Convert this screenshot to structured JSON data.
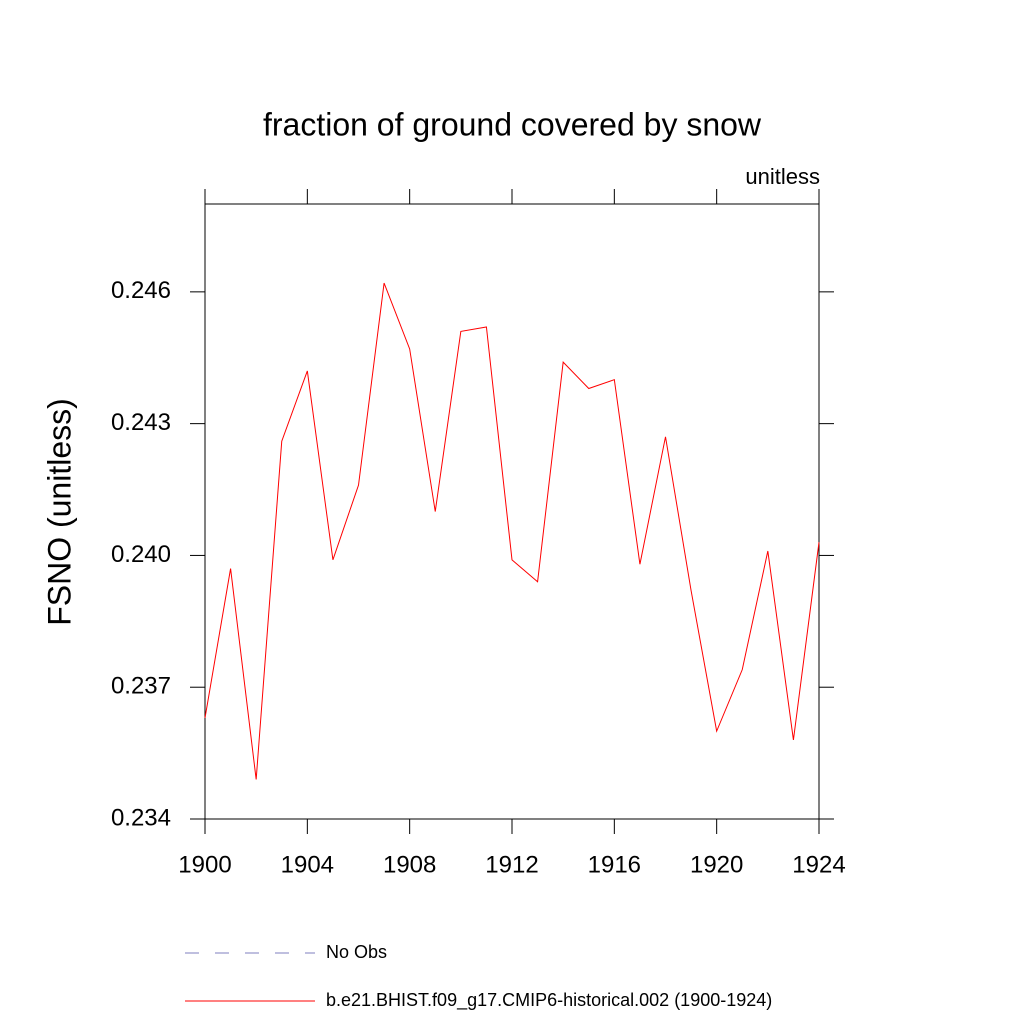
{
  "chart_data": {
    "type": "line",
    "title": "fraction of ground covered by snow",
    "subtitle": "unitless",
    "y_label": "FSNO  (unitless)",
    "x": [
      1900,
      1901,
      1902,
      1903,
      1904,
      1905,
      1906,
      1907,
      1908,
      1909,
      1910,
      1911,
      1912,
      1913,
      1914,
      1915,
      1916,
      1917,
      1918,
      1919,
      1920,
      1921,
      1922,
      1923,
      1924
    ],
    "series": [
      {
        "name": "b.e21.BHIST.f09_g17.CMIP6-historical.002 (1900-1924)",
        "color": "#ff0000",
        "values": [
          0.2363,
          0.2397,
          0.2349,
          0.2426,
          0.2442,
          0.2399,
          0.2416,
          0.2462,
          0.2447,
          0.241,
          0.2451,
          0.2452,
          0.2399,
          0.2394,
          0.2444,
          0.2438,
          0.244,
          0.2398,
          0.2427,
          0.2392,
          0.236,
          0.2374,
          0.2401,
          0.2358,
          0.2403
        ]
      }
    ],
    "obs_legend": {
      "name": "No Obs",
      "color": "#7f7fbf",
      "dashed": true
    },
    "xlim": [
      1900,
      1924
    ],
    "xticks": [
      1900,
      1904,
      1908,
      1912,
      1916,
      1920,
      1924
    ],
    "ylim": [
      0.234,
      0.248
    ],
    "yticks": [
      0.234,
      0.237,
      {
        "value": 0.24,
        "label": "0.240"
      },
      0.243,
      0.246
    ]
  }
}
